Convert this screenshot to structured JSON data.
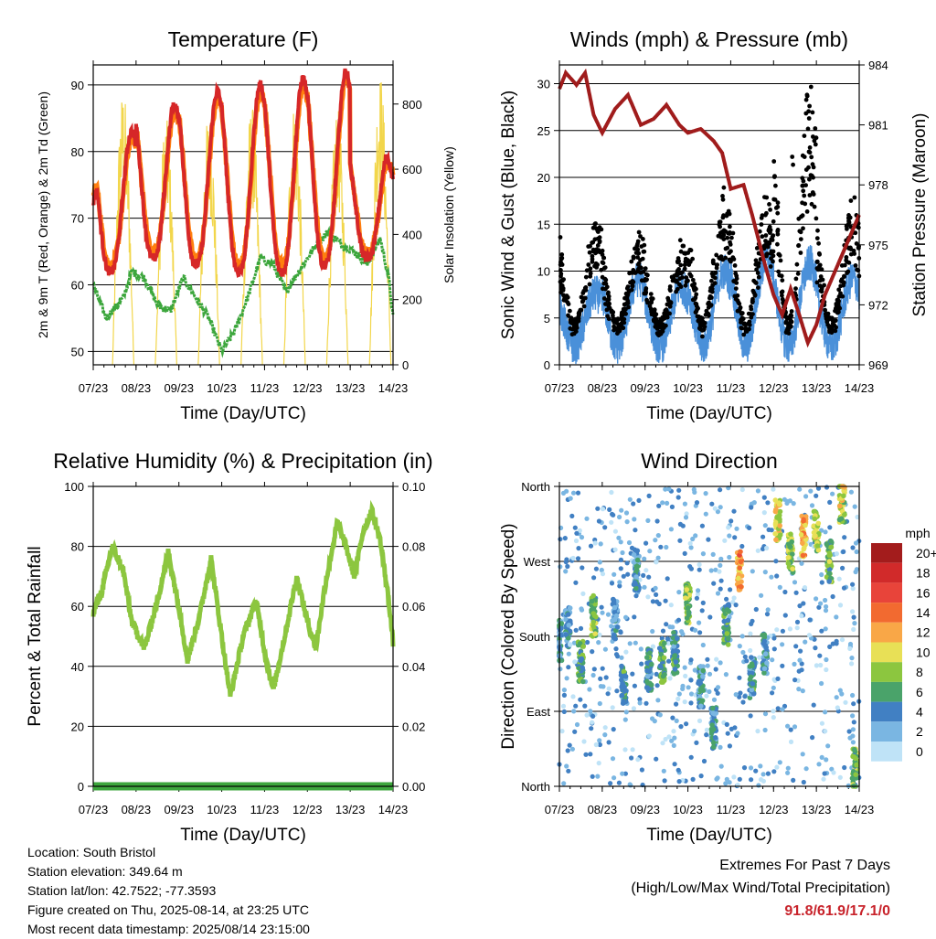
{
  "days": [
    "07/23",
    "08/23",
    "09/23",
    "10/23",
    "11/23",
    "12/23",
    "13/23",
    "14/23"
  ],
  "chart_data": [
    {
      "type": "line",
      "title": "Temperature (F)",
      "xlabel": "Time (Day/UTC)",
      "ylabel": "2m & 9m T (Red, Orange) & 2m Td (Green)",
      "ylabel_right": "Solar Insolation (Yellow)",
      "ylim": [
        48,
        93
      ],
      "ylim_right": [
        0,
        920
      ],
      "yticks": [
        50,
        60,
        70,
        80,
        90
      ],
      "yticks_right": [
        0,
        200,
        400,
        600,
        800
      ],
      "grid": true,
      "series": [
        {
          "color": "#d62728",
          "daily_max": [
            83,
            87,
            89,
            90,
            91,
            92,
            80
          ],
          "daily_min": [
            62,
            64,
            63,
            62,
            61.9,
            63,
            64
          ],
          "start": 72,
          "end": 76
        },
        {
          "color": "#ff7f0e",
          "daily_max": [
            82,
            86,
            88,
            89,
            90,
            91,
            79
          ],
          "daily_min": [
            63,
            65,
            64,
            63,
            63,
            64,
            65
          ],
          "start": 73,
          "end": 77
        },
        {
          "color": "#3ca63c",
          "points": [
            [
              0,
              60
            ],
            [
              0.3,
              55
            ],
            [
              0.7,
              58
            ],
            [
              0.9,
              62
            ],
            [
              1.2,
              61
            ],
            [
              1.5,
              57
            ],
            [
              1.8,
              56
            ],
            [
              2.1,
              61
            ],
            [
              2.4,
              58
            ],
            [
              2.7,
              55
            ],
            [
              3.0,
              50
            ],
            [
              3.3,
              53
            ],
            [
              3.6,
              58
            ],
            [
              3.9,
              64
            ],
            [
              4.2,
              63
            ],
            [
              4.5,
              59
            ],
            [
              4.8,
              62
            ],
            [
              5.2,
              66
            ],
            [
              5.5,
              68
            ],
            [
              5.8,
              66
            ],
            [
              6.1,
              65
            ],
            [
              6.4,
              63
            ],
            [
              6.7,
              67
            ],
            [
              6.9,
              61
            ],
            [
              7.0,
              55
            ]
          ]
        },
        {
          "color": "#f2d64b",
          "daily_peak": [
            850,
            760,
            780,
            800,
            810,
            790,
            900
          ]
        }
      ]
    },
    {
      "type": "line",
      "title": "Winds (mph) & Pressure (mb)",
      "xlabel": "Time (Day/UTC)",
      "ylabel": "Sonic Wind & Gust (Blue, Black)",
      "ylabel_right": "Station Pressure (Maroon)",
      "ylim": [
        0,
        32
      ],
      "ylim_right": [
        969,
        984
      ],
      "yticks": [
        0,
        5,
        10,
        15,
        20,
        25,
        30
      ],
      "yticks_right": [
        969,
        972,
        975,
        978,
        981,
        984
      ],
      "grid": true,
      "series": [
        {
          "color": "#4a90d9",
          "daily_peak": [
            7,
            9,
            8,
            10,
            12,
            11,
            9
          ]
        },
        {
          "color": "#000000",
          "daily_peak": [
            16,
            14,
            13,
            19,
            19,
            29.6,
            18
          ]
        },
        {
          "color": "#a01c1c",
          "points": [
            [
              0,
              982.8
            ],
            [
              0.15,
              983.6
            ],
            [
              0.4,
              983.0
            ],
            [
              0.6,
              983.6
            ],
            [
              0.8,
              981.5
            ],
            [
              1.0,
              980.6
            ],
            [
              1.3,
              981.8
            ],
            [
              1.6,
              982.5
            ],
            [
              1.9,
              981.0
            ],
            [
              2.2,
              981.3
            ],
            [
              2.5,
              982.0
            ],
            [
              2.8,
              981.0
            ],
            [
              3.0,
              980.6
            ],
            [
              3.3,
              980.8
            ],
            [
              3.6,
              980.2
            ],
            [
              3.8,
              979.6
            ],
            [
              4.0,
              977.8
            ],
            [
              4.3,
              978.0
            ],
            [
              4.5,
              976.5
            ],
            [
              4.8,
              974.0
            ],
            [
              5.0,
              972.5
            ],
            [
              5.2,
              971.5
            ],
            [
              5.4,
              972.8
            ],
            [
              5.6,
              971.5
            ],
            [
              5.8,
              970.1
            ],
            [
              6.0,
              971.0
            ],
            [
              6.2,
              972.5
            ],
            [
              6.5,
              974.0
            ],
            [
              6.8,
              975.5
            ],
            [
              7.0,
              976.5
            ]
          ]
        }
      ]
    },
    {
      "type": "line",
      "title": "Relative Humidity (%) & Precipitation (in)",
      "xlabel": "Time (Day/UTC)",
      "ylabel": "Percent & Total Rainfall",
      "ylim": [
        0,
        100
      ],
      "ylim_right": [
        0,
        0.1
      ],
      "yticks": [
        0,
        20,
        40,
        60,
        80,
        100
      ],
      "yticks_right": [
        "0.00",
        "0.02",
        "0.04",
        "0.06",
        "0.08",
        "0.10"
      ],
      "grid": true,
      "series": [
        {
          "color": "#8cc63f",
          "points": [
            [
              0,
              58
            ],
            [
              0.2,
              65
            ],
            [
              0.45,
              80
            ],
            [
              0.7,
              72
            ],
            [
              0.9,
              55
            ],
            [
              1.2,
              46
            ],
            [
              1.5,
              62
            ],
            [
              1.75,
              78
            ],
            [
              2.0,
              60
            ],
            [
              2.2,
              42
            ],
            [
              2.5,
              58
            ],
            [
              2.75,
              76
            ],
            [
              3.0,
              50
            ],
            [
              3.2,
              30
            ],
            [
              3.5,
              50
            ],
            [
              3.8,
              62
            ],
            [
              4.0,
              45
            ],
            [
              4.2,
              32
            ],
            [
              4.5,
              52
            ],
            [
              4.75,
              70
            ],
            [
              5.0,
              55
            ],
            [
              5.2,
              46
            ],
            [
              5.4,
              66
            ],
            [
              5.7,
              88
            ],
            [
              5.9,
              80
            ],
            [
              6.1,
              70
            ],
            [
              6.3,
              85
            ],
            [
              6.5,
              92
            ],
            [
              6.7,
              82
            ],
            [
              6.9,
              62
            ],
            [
              7.0,
              48
            ]
          ]
        },
        {
          "color": "#3ca63c",
          "name": "",
          "values_total": 0
        }
      ]
    },
    {
      "type": "scatter",
      "title": "Wind Direction",
      "xlabel": "Time (Day/UTC)",
      "ylabel": "Direction (Colored By Speed)",
      "ylim": [
        0,
        360
      ],
      "ytick_labels": [
        "North",
        "East",
        "South",
        "West",
        "North"
      ],
      "grid": true,
      "colorbar": {
        "title": "mph",
        "labels": [
          "20+",
          "18",
          "16",
          "14",
          "12",
          "10",
          "8",
          "6",
          "4",
          "2",
          "0"
        ],
        "colors": [
          "#a31c1c",
          "#d12a2a",
          "#e8443a",
          "#f26a30",
          "#f9a747",
          "#e8e056",
          "#8cc63f",
          "#4aa36a",
          "#4180c3",
          "#7ab6e2",
          "#bfe3f7"
        ]
      },
      "clusters": [
        [
          0.0,
          175,
          4
        ],
        [
          0.2,
          190,
          3
        ],
        [
          0.5,
          150,
          6
        ],
        [
          0.8,
          205,
          7
        ],
        [
          1.3,
          200,
          3
        ],
        [
          1.5,
          120,
          5
        ],
        [
          1.8,
          260,
          4
        ],
        [
          2.1,
          140,
          5
        ],
        [
          2.4,
          150,
          6
        ],
        [
          2.7,
          160,
          5
        ],
        [
          3.0,
          220,
          8
        ],
        [
          3.3,
          120,
          4
        ],
        [
          3.6,
          70,
          4
        ],
        [
          3.9,
          195,
          6
        ],
        [
          4.2,
          260,
          13
        ],
        [
          4.5,
          130,
          5
        ],
        [
          4.8,
          160,
          4
        ],
        [
          5.1,
          320,
          10
        ],
        [
          5.4,
          280,
          8
        ],
        [
          5.7,
          300,
          12
        ],
        [
          6.0,
          305,
          9
        ],
        [
          6.3,
          270,
          7
        ],
        [
          6.6,
          340,
          9
        ],
        [
          6.9,
          20,
          7
        ]
      ]
    }
  ],
  "footer": {
    "location": "Location: South Bristol",
    "elevation": "Station elevation: 349.64 m",
    "latlon": "Station lat/lon: 42.7522; -77.3593",
    "created": "Figure created on Thu, 2025-08-14, at 23:25 UTC",
    "timestamp": "Most recent data timestamp: 2025/08/14 23:15:00"
  },
  "extremes": {
    "title": "Extremes For Past 7 Days",
    "subtitle": "(High/Low/Max Wind/Total Precipitation)",
    "value": "91.8/61.9/17.1/0"
  }
}
